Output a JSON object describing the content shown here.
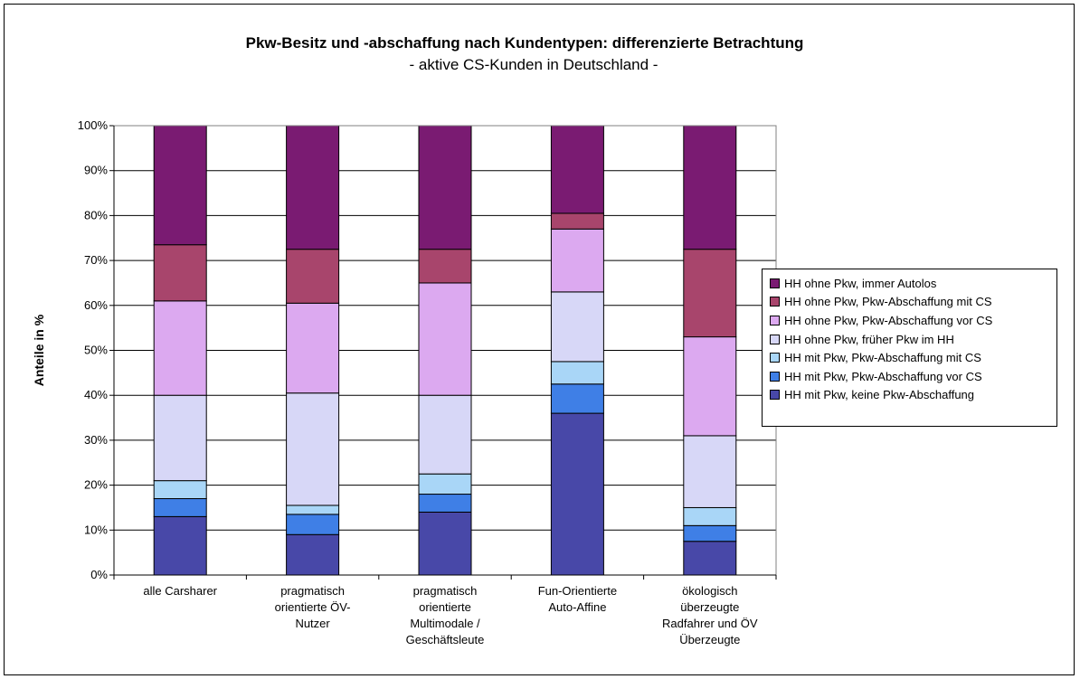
{
  "chart_data": {
    "type": "bar",
    "stacked": true,
    "title": "Pkw-Besitz und -abschaffung nach Kundentypen: differenzierte Betrachtung",
    "subtitle": "- aktive CS-Kunden in Deutschland -",
    "ylabel": "Anteile in %",
    "ylim": [
      0,
      100
    ],
    "yticks": [
      "0%",
      "10%",
      "20%",
      "30%",
      "40%",
      "50%",
      "60%",
      "70%",
      "80%",
      "90%",
      "100%"
    ],
    "grid": true,
    "legend_position": "right",
    "categories": [
      [
        "alle Carsharer"
      ],
      [
        "pragmatisch",
        "orientierte ÖV-",
        "Nutzer"
      ],
      [
        "pragmatisch",
        "orientierte",
        "Multimodale /",
        "Geschäftsleute"
      ],
      [
        "Fun-Orientierte",
        "Auto-Affine"
      ],
      [
        "ökologisch",
        "überzeugte",
        "Radfahrer und ÖV",
        "Überzeugte"
      ]
    ],
    "series": [
      {
        "name": "HH mit Pkw, keine Pkw-Abschaffung",
        "color": "#4848a8",
        "values": [
          13,
          9,
          14,
          36,
          7.5
        ]
      },
      {
        "name": "HH mit Pkw, Pkw-Abschaffung vor CS",
        "color": "#3f7fe6",
        "values": [
          4,
          4.5,
          4,
          6.5,
          3.5
        ]
      },
      {
        "name": "HH mit Pkw, Pkw-Abschaffung mit CS",
        "color": "#a9d6f7",
        "values": [
          4,
          2,
          4.5,
          5,
          4
        ]
      },
      {
        "name": "HH ohne Pkw, früher Pkw im HH",
        "color": "#d7d7f7",
        "values": [
          19,
          25,
          17.5,
          15.5,
          16
        ]
      },
      {
        "name": "HH ohne Pkw, Pkw-Abschaffung vor CS",
        "color": "#dca9f0",
        "values": [
          21,
          20,
          25,
          14,
          22
        ]
      },
      {
        "name": "HH ohne Pkw, Pkw-Abschaffung mit CS",
        "color": "#a8456c",
        "values": [
          12.5,
          12,
          7.5,
          3.5,
          19.5
        ]
      },
      {
        "name": "HH ohne Pkw, immer Autolos",
        "color": "#7a1b72",
        "values": [
          26.5,
          27.5,
          27.5,
          19.5,
          27.5
        ]
      }
    ]
  }
}
